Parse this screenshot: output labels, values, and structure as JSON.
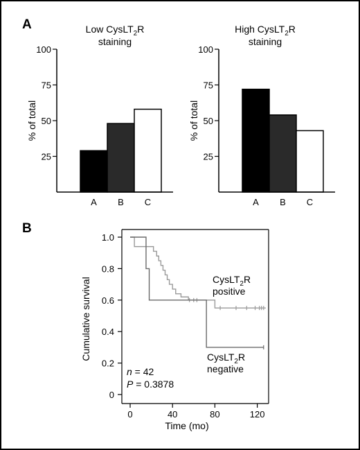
{
  "panel_labels": [
    "A",
    "B"
  ],
  "chart_data": [
    {
      "type": "bar",
      "title_main": "Low CysLT",
      "title_sub": "2",
      "title_tail": "R",
      "title_line2": "staining",
      "ylabel": "% of total",
      "categories": [
        "A",
        "B",
        "C"
      ],
      "values": [
        29,
        48,
        58
      ],
      "colors": [
        "#000000",
        "#2a2a2a",
        "#ffffff"
      ],
      "ylim": [
        0,
        100
      ],
      "yticks": [
        25,
        50,
        75,
        100
      ]
    },
    {
      "type": "bar",
      "title_main": "High CysLT",
      "title_sub": "2",
      "title_tail": "R",
      "title_line2": "staining",
      "ylabel": "% of total",
      "categories": [
        "A",
        "B",
        "C"
      ],
      "values": [
        72,
        54,
        43
      ],
      "colors": [
        "#000000",
        "#2a2a2a",
        "#ffffff"
      ],
      "ylim": [
        0,
        100
      ],
      "yticks": [
        25,
        50,
        75,
        100
      ]
    },
    {
      "type": "line",
      "xlabel": "Time (mo)",
      "ylabel": "Cumulative survival",
      "xlim": [
        0,
        130
      ],
      "ylim": [
        0,
        1.0
      ],
      "xticks": [
        0,
        40,
        80,
        120
      ],
      "yticks": [
        "0",
        "0.2",
        "0.4",
        "0.6",
        "0.8",
        "1.0"
      ],
      "series": [
        {
          "color": "#9a9a9a",
          "label_main": "CysLT",
          "label_sub": "2",
          "label_tail": "R",
          "label_line2": "positive",
          "steps": [
            [
              0,
              1.0
            ],
            [
              4,
              0.94
            ],
            [
              22,
              0.91
            ],
            [
              25,
              0.88
            ],
            [
              27,
              0.85
            ],
            [
              29,
              0.82
            ],
            [
              31,
              0.79
            ],
            [
              33,
              0.76
            ],
            [
              35,
              0.73
            ],
            [
              37,
              0.7
            ],
            [
              40,
              0.67
            ],
            [
              43,
              0.64
            ],
            [
              48,
              0.62
            ],
            [
              55,
              0.6
            ],
            [
              80,
              0.55
            ],
            [
              128,
              0.55
            ]
          ],
          "censors": [
            [
              56,
              0.6
            ],
            [
              60,
              0.6
            ],
            [
              63,
              0.6
            ],
            [
              85,
              0.55
            ],
            [
              100,
              0.55
            ],
            [
              110,
              0.55
            ],
            [
              118,
              0.55
            ],
            [
              122,
              0.55
            ],
            [
              124,
              0.55
            ],
            [
              126,
              0.55
            ]
          ]
        },
        {
          "color": "#6a6a6a",
          "label_main": "CysLT",
          "label_sub": "2",
          "label_tail": "R",
          "label_line2": "negative",
          "steps": [
            [
              0,
              1.0
            ],
            [
              15,
              0.8
            ],
            [
              18,
              0.6
            ],
            [
              72,
              0.3
            ],
            [
              126,
              0.3
            ]
          ],
          "censors": [
            [
              126,
              0.3
            ]
          ]
        }
      ],
      "annotation": {
        "n_label": "n",
        "n_value": " = 42",
        "p_label": "P",
        "p_value": " = 0.3878"
      }
    }
  ]
}
